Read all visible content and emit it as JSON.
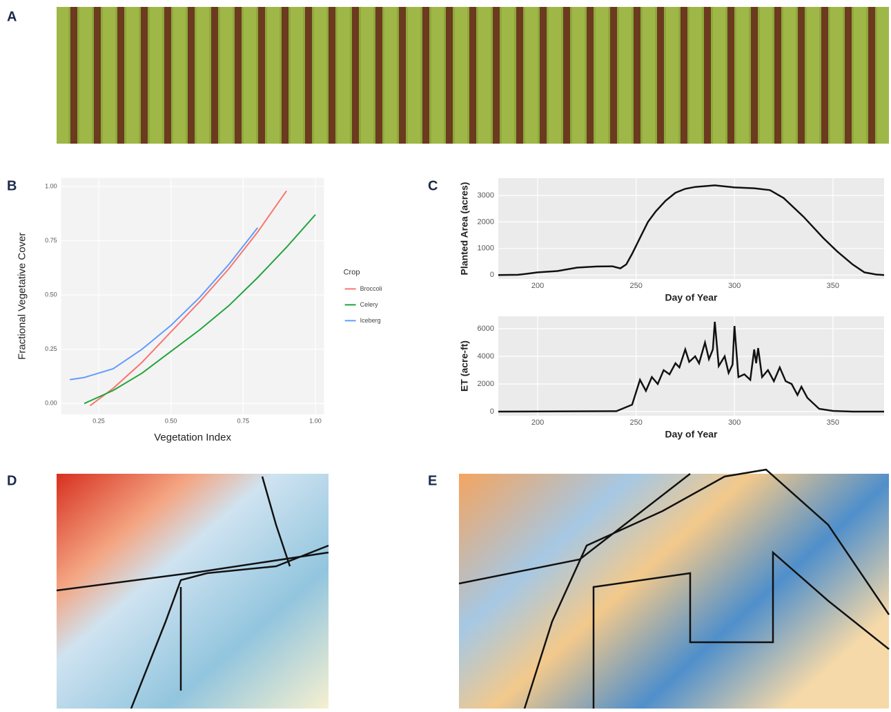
{
  "panel_labels": [
    "A",
    "B",
    "C",
    "D",
    "E"
  ],
  "chart_data": [
    {
      "type": "line",
      "x_label": "Vegetation Index",
      "y_label": "Fractional Vegetative Cover",
      "legend_title": "Crop",
      "legend": "right",
      "grid": true,
      "xlim": [
        0.12,
        1.03
      ],
      "ylim": [
        -0.05,
        1.04
      ],
      "xticks": [
        {
          "value": 0.25,
          "label": "0.25"
        },
        {
          "value": 0.5,
          "label": "0.50"
        },
        {
          "value": 0.75,
          "label": "0.75"
        },
        {
          "value": 1,
          "label": "1.00"
        }
      ],
      "yticks": [
        {
          "value": 0,
          "label": "0.00"
        },
        {
          "value": 0.25,
          "label": "0.25"
        },
        {
          "value": 0.5,
          "label": "0.50"
        },
        {
          "value": 0.75,
          "label": "0.75"
        },
        {
          "value": 1,
          "label": "1.00"
        }
      ],
      "series": [
        {
          "name": "Broccoli",
          "color": "#f8766d",
          "x": [
            0.22,
            0.3,
            0.4,
            0.5,
            0.6,
            0.7,
            0.8,
            0.9
          ],
          "values": [
            -0.01,
            0.07,
            0.19,
            0.33,
            0.47,
            0.62,
            0.79,
            0.98
          ]
        },
        {
          "name": "Celery",
          "color": "#22a33a",
          "x": [
            0.2,
            0.3,
            0.4,
            0.5,
            0.6,
            0.7,
            0.8,
            0.9,
            1.0
          ],
          "values": [
            0.0,
            0.06,
            0.14,
            0.24,
            0.34,
            0.45,
            0.58,
            0.72,
            0.87
          ]
        },
        {
          "name": "Iceberg",
          "color": "#619cff",
          "x": [
            0.15,
            0.2,
            0.3,
            0.4,
            0.5,
            0.6,
            0.7,
            0.8
          ],
          "values": [
            0.11,
            0.12,
            0.16,
            0.25,
            0.36,
            0.49,
            0.64,
            0.81
          ]
        }
      ]
    },
    {
      "type": "line",
      "x_label": "Day of Year",
      "y_label": "Planted Area (acres)",
      "grid": true,
      "xlim": [
        180,
        376
      ],
      "ylim": [
        -150,
        3650
      ],
      "xticks": [
        200,
        250,
        300,
        350
      ],
      "yticks": [
        0,
        1000,
        2000,
        3000
      ],
      "series": [
        {
          "color": "#111111",
          "x": [
            180,
            190,
            195,
            200,
            210,
            220,
            230,
            238,
            242,
            245,
            248,
            252,
            256,
            260,
            265,
            270,
            275,
            280,
            290,
            300,
            310,
            318,
            325,
            335,
            345,
            352,
            360,
            366,
            372,
            376
          ],
          "values": [
            0,
            10,
            50,
            100,
            150,
            280,
            320,
            330,
            250,
            400,
            800,
            1400,
            2000,
            2400,
            2800,
            3100,
            3250,
            3320,
            3380,
            3300,
            3270,
            3200,
            2900,
            2200,
            1400,
            900,
            400,
            100,
            20,
            0
          ]
        }
      ]
    },
    {
      "type": "line",
      "x_label": "Day of Year",
      "y_label": "ET (acre-ft)",
      "grid": true,
      "xlim": [
        180,
        376
      ],
      "ylim": [
        -300,
        6900
      ],
      "xticks": [
        200,
        250,
        300,
        350
      ],
      "yticks": [
        0,
        2000,
        4000,
        6000
      ],
      "series": [
        {
          "color": "#111111",
          "x": [
            180,
            240,
            248,
            252,
            255,
            258,
            261,
            264,
            267,
            270,
            272,
            275,
            277,
            280,
            282,
            285,
            287,
            289,
            290,
            292,
            295,
            297,
            299,
            300,
            302,
            305,
            308,
            310,
            311,
            312,
            314,
            317,
            320,
            323,
            326,
            329,
            332,
            334,
            337,
            340,
            343,
            350,
            360,
            376
          ],
          "values": [
            0,
            30,
            500,
            2300,
            1500,
            2500,
            2000,
            3000,
            2700,
            3500,
            3200,
            4500,
            3600,
            4000,
            3500,
            5000,
            3800,
            4500,
            6500,
            3300,
            4000,
            2800,
            3400,
            6200,
            2500,
            2700,
            2300,
            4500,
            3500,
            4600,
            2500,
            3000,
            2200,
            3200,
            2200,
            2000,
            1200,
            1800,
            1000,
            600,
            200,
            50,
            0,
            0
          ]
        }
      ]
    }
  ]
}
